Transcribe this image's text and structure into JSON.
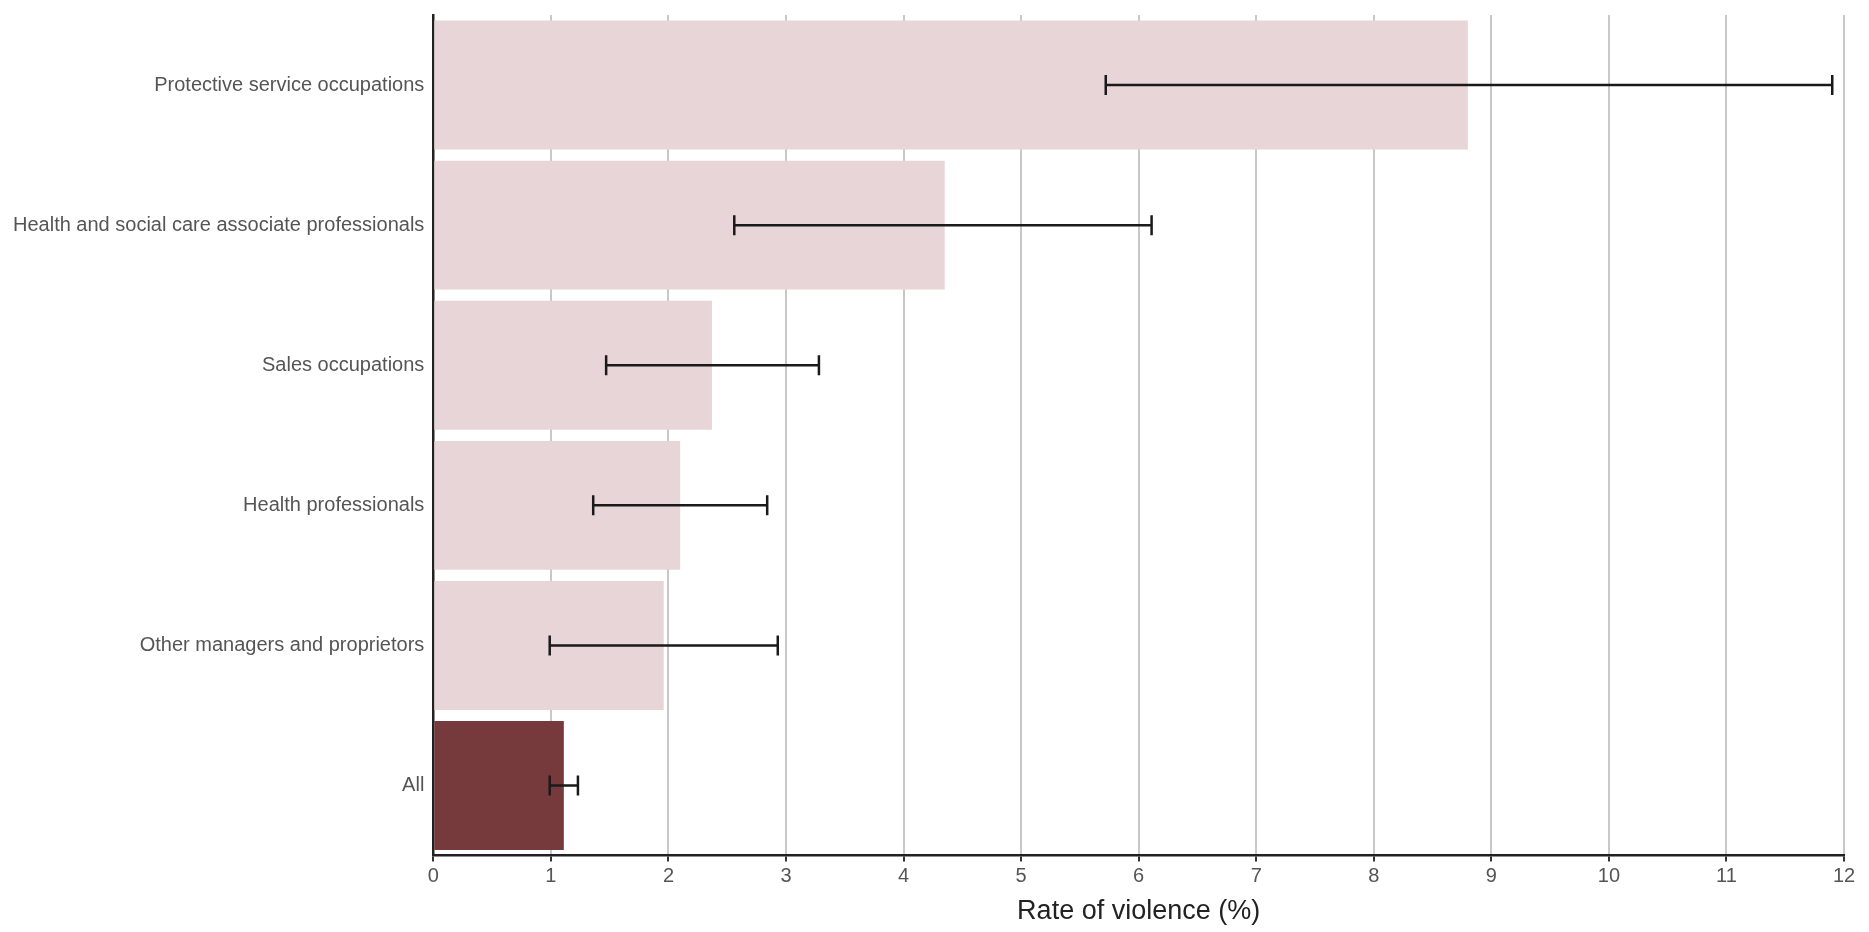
{
  "chart_data": {
    "type": "bar",
    "orientation": "horizontal",
    "xlabel": "Rate of violence (%)",
    "categories": [
      "Protective service occupations",
      "Health and social care associate professionals",
      "Sales occupations",
      "Health professionals",
      "Other managers and proprietors",
      "All"
    ],
    "values": [
      8.8,
      4.35,
      2.37,
      2.1,
      1.96,
      1.11
    ],
    "colors": [
      "#e8d5d7",
      "#e8d5d7",
      "#e8d5d7",
      "#e8d5d7",
      "#e8d5d7",
      "#773a3c"
    ],
    "errors": [
      [
        5.72,
        11.9
      ],
      [
        2.56,
        6.11
      ],
      [
        1.47,
        3.28
      ],
      [
        1.36,
        2.84
      ],
      [
        0.99,
        2.93
      ],
      [
        0.99,
        1.23
      ]
    ],
    "xlim": [
      0,
      12
    ],
    "xticks": [
      0,
      1,
      2,
      3,
      4,
      5,
      6,
      7,
      8,
      9,
      10,
      11,
      12
    ],
    "grid": "x",
    "legend": false
  }
}
